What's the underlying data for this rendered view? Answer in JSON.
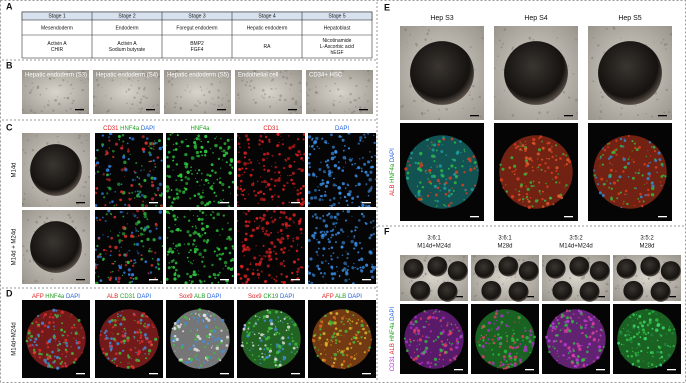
{
  "panel_labels": [
    "A",
    "B",
    "C",
    "D",
    "E",
    "F"
  ],
  "stage_table": {
    "stages": [
      "Stage 1",
      "Stage 2",
      "Stage 3",
      "Stage 4",
      "Stage 5"
    ],
    "cell_types": [
      "Mesendoderm",
      "Endoderm",
      "Foregut endoderm",
      "Hepatic endoderm",
      "Hepatoblast"
    ],
    "factors": [
      [
        "Activin A",
        "CHIR"
      ],
      [
        "Activin A",
        "Sodium butyrate"
      ],
      [
        "BMP2",
        "FGF4"
      ],
      [
        "RA"
      ],
      [
        "Nicotinamide",
        "L-Ascorbic acid",
        "hEGF"
      ]
    ]
  },
  "panel_b": {
    "labels": [
      "Hepatic endoderm (S3)",
      "Hepatic endoderm (S4)",
      "Hepatic endoderm (S5)",
      "Endothelial cell",
      "CD34+ HSC"
    ]
  },
  "panel_c": {
    "headers": [
      [
        {
          "text": "CD31",
          "color": "#e02020"
        },
        {
          "text": "HNF4a",
          "color": "#20a020"
        },
        {
          "text": "DAPI",
          "color": "#2060e0"
        }
      ],
      [
        {
          "text": "HNF4a",
          "color": "#20a020"
        }
      ],
      [
        {
          "text": "CD31",
          "color": "#e02020"
        }
      ],
      [
        {
          "text": "DAPI",
          "color": "#2060e0"
        }
      ]
    ],
    "rows": [
      "M14d",
      "M14d + M24d"
    ]
  },
  "panel_d": {
    "headers": [
      [
        {
          "text": "AFP",
          "color": "#e02020"
        },
        {
          "text": "HNF4a",
          "color": "#20a020"
        },
        {
          "text": "DAPI",
          "color": "#2060e0"
        }
      ],
      [
        {
          "text": "ALB",
          "color": "#e02020"
        },
        {
          "text": "CD31",
          "color": "#20a020"
        },
        {
          "text": "DAPI",
          "color": "#2060e0"
        }
      ],
      [
        {
          "text": "Sox9",
          "color": "#e02020"
        },
        {
          "text": "ALB",
          "color": "#20a020"
        },
        {
          "text": "DAPI",
          "color": "#2060e0"
        }
      ],
      [
        {
          "text": "Sox9",
          "color": "#e02020"
        },
        {
          "text": "CK19",
          "color": "#20a020"
        },
        {
          "text": "DAPI",
          "color": "#2060e0"
        }
      ],
      [
        {
          "text": "AFP",
          "color": "#e02020"
        },
        {
          "text": "ALB",
          "color": "#20a020"
        },
        {
          "text": "DAPI",
          "color": "#2060e0"
        }
      ]
    ],
    "row": "M14d+M24d"
  },
  "panel_e": {
    "headers": [
      "Hep S3",
      "Hep S4",
      "Hep S5"
    ],
    "side_label": [
      {
        "text": "ALB",
        "color": "#e02020"
      },
      {
        "text": "HNF4a",
        "color": "#20a020"
      },
      {
        "text": "DAPI",
        "color": "#2060e0"
      }
    ]
  },
  "panel_f": {
    "headers": [
      [
        "3:6:1",
        "M14d+M24d"
      ],
      [
        "3:6:1",
        "M28d"
      ],
      [
        "3:5:2",
        "M14d+M24d"
      ],
      [
        "3:5:2",
        "M28d"
      ]
    ],
    "side_label": [
      {
        "text": "CD31",
        "color": "#b030d0"
      },
      {
        "text": "ALB",
        "color": "#e02020"
      },
      {
        "text": "HNF4a",
        "color": "#20a020"
      },
      {
        "text": "DAPI",
        "color": "#2060e0"
      }
    ]
  }
}
